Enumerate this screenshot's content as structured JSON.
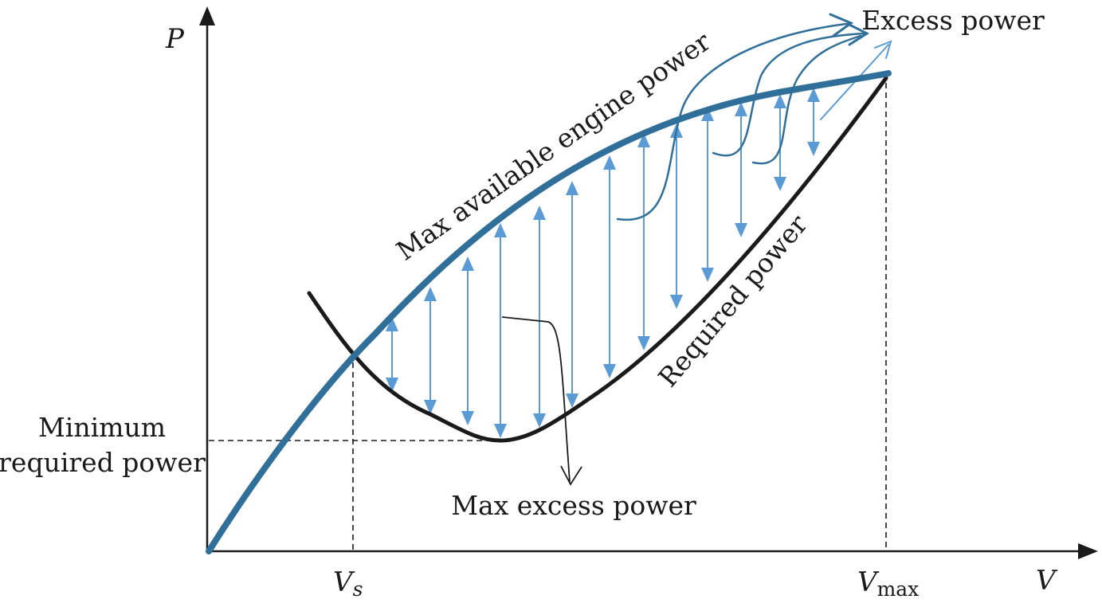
{
  "axes": {
    "y_label": "P",
    "x_label": "V",
    "vs_label": {
      "main": "V",
      "sub": "s"
    },
    "vmax_label": {
      "main": "V",
      "sub": "max"
    }
  },
  "labels": {
    "max_available": "Max available engine power",
    "required": "Required power",
    "excess": "Excess power",
    "max_excess": "Max excess power",
    "minimum_line1": "Minimum",
    "minimum_line2": "required power"
  },
  "colors": {
    "available_curve": "#2f6f99",
    "required_curve": "#1a1a1a",
    "excess_arrows": "#5b9bd5",
    "axis": "#1a1a1a"
  }
}
